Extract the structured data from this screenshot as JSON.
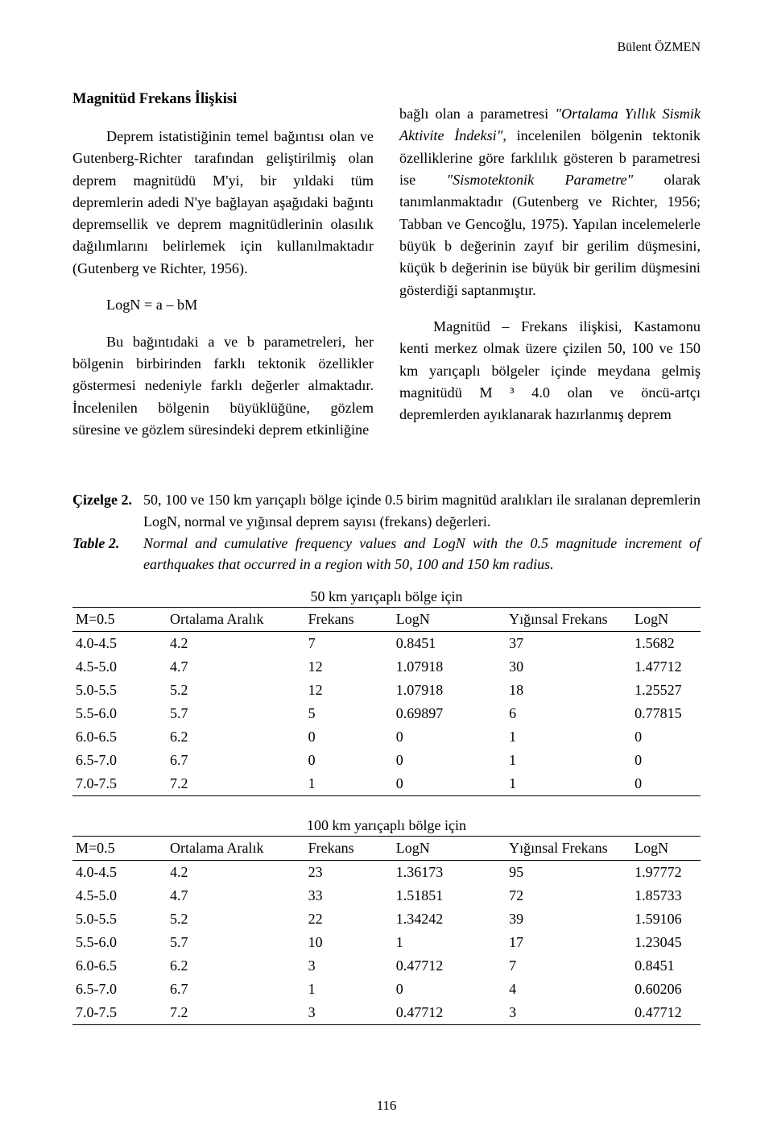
{
  "running_head": "Bülent ÖZMEN",
  "left_col": {
    "heading": "Magnitüd Frekans İlişkisi",
    "p1": "Deprem istatistiğinin temel bağıntısı olan ve Gutenberg-Richter tarafından geliştirilmiş olan deprem magnitüdü M'yi, bir yıldaki tüm depremlerin adedi N'ye bağlayan aşağıdaki bağıntı depremsellik ve deprem magnitüdlerinin olasılık dağılımlarını belirlemek için kullanılmaktadır (Gutenberg ve Richter, 1956).",
    "eq": "LogN = a – bM",
    "p2": "Bu bağıntıdaki a ve b parametreleri, her bölgenin birbirinden farklı tektonik özellikler göstermesi nedeniyle farklı değerler almaktadır. İncelenilen bölgenin büyüklüğüne, gözlem süresine ve gözlem süresindeki deprem etkinliğine"
  },
  "right_col": {
    "p1": "bağlı olan a parametresi \"Ortalama Yıllık Sismik Aktivite İndeksi\", incelenilen bölgenin tektonik özelliklerine göre farklılık gösteren b parametresi ise \"Sismotektonik Parametre\" olarak tanımlanmaktadır (Gutenberg ve Richter, 1956; Tabban ve Gencoğlu, 1975). Yapılan incelemelerle büyük b değerinin zayıf bir gerilim düşmesini, küçük b değerinin ise büyük bir gerilim düşmesini gösterdiği saptanmıştır.",
    "p2": "Magnitüd – Frekans ilişkisi, Kastamonu kenti merkez olmak üzere çizilen 50, 100 ve 150 km yarıçaplı bölgeler içinde meydana gelmiş magnitüdü M ³ 4.0 olan ve öncü-artçı depremlerden ayıklanarak hazırlanmış deprem"
  },
  "captions": {
    "tr_label": "Çizelge 2.",
    "tr_text": "50, 100 ve 150 km yarıçaplı bölge içinde 0.5 birim magnitüd aralıkları ile sıralanan depremlerin LogN, normal ve yığınsal deprem sayısı (frekans) değerleri.",
    "en_label": "Table 2.",
    "en_text": "Normal and cumulative frequency values and LogN with the 0.5 magnitude increment of earthquakes that occurred in a region with 50, 100 and 150 km radius."
  },
  "tables": {
    "headers": [
      "M=0.5",
      "Ortalama Aralık",
      "Frekans",
      "LogN",
      "Yığınsal Frekans",
      "LogN"
    ],
    "t50": {
      "title": "50 km yarıçaplı bölge için",
      "rows": [
        [
          "4.0-4.5",
          "4.2",
          "7",
          "0.8451",
          "37",
          "1.5682"
        ],
        [
          "4.5-5.0",
          "4.7",
          "12",
          "1.07918",
          "30",
          "1.47712"
        ],
        [
          "5.0-5.5",
          "5.2",
          "12",
          "1.07918",
          "18",
          "1.25527"
        ],
        [
          "5.5-6.0",
          "5.7",
          "5",
          "0.69897",
          "6",
          "0.77815"
        ],
        [
          "6.0-6.5",
          "6.2",
          "0",
          "0",
          "1",
          "0"
        ],
        [
          "6.5-7.0",
          "6.7",
          "0",
          "0",
          "1",
          "0"
        ],
        [
          "7.0-7.5",
          "7.2",
          "1",
          "0",
          "1",
          "0"
        ]
      ]
    },
    "t100": {
      "title": "100 km yarıçaplı bölge için",
      "rows": [
        [
          "4.0-4.5",
          "4.2",
          "23",
          "1.36173",
          "95",
          "1.97772"
        ],
        [
          "4.5-5.0",
          "4.7",
          "33",
          "1.51851",
          "72",
          "1.85733"
        ],
        [
          "5.0-5.5",
          "5.2",
          "22",
          "1.34242",
          "39",
          "1.59106"
        ],
        [
          "5.5-6.0",
          "5.7",
          "10",
          "1",
          "17",
          "1.23045"
        ],
        [
          "6.0-6.5",
          "6.2",
          "3",
          "0.47712",
          "7",
          "0.8451"
        ],
        [
          "6.5-7.0",
          "6.7",
          "1",
          "0",
          "4",
          "0.60206"
        ],
        [
          "7.0-7.5",
          "7.2",
          "3",
          "0.47712",
          "3",
          "0.47712"
        ]
      ]
    }
  },
  "page_number": "116"
}
